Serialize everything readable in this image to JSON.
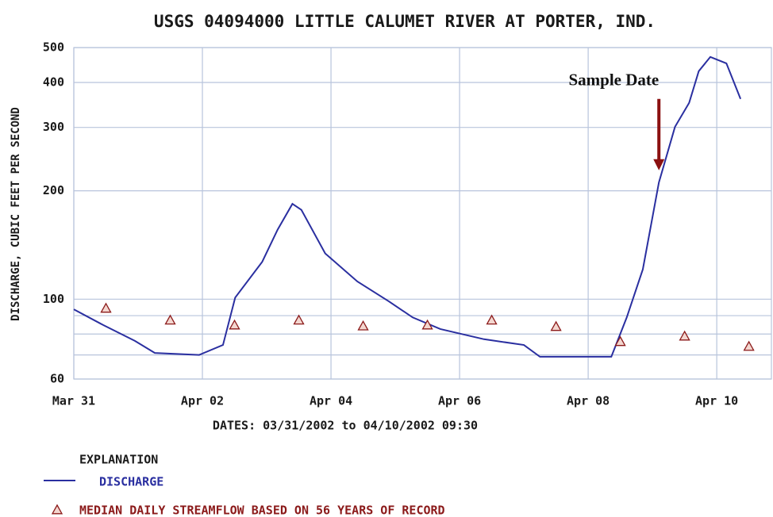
{
  "chart_data": {
    "type": "line",
    "title": "USGS 04094000 LITTLE CALUMET RIVER AT PORTER, IND.",
    "xlabel": "DATES: 03/31/2002 to 04/10/2002 09:30",
    "ylabel": "DISCHARGE, CUBIC FEET PER SECOND",
    "legend_title": "EXPLANATION",
    "annotation": {
      "text": "Sample Date",
      "x": 9.1,
      "y": 228,
      "color": "#8b1010"
    },
    "xlim": [
      0,
      10.85
    ],
    "xticks": [
      {
        "value": 0,
        "label": "Mar 31"
      },
      {
        "value": 2,
        "label": "Apr 02"
      },
      {
        "value": 4,
        "label": "Apr 04"
      },
      {
        "value": 6,
        "label": "Apr 06"
      },
      {
        "value": 8,
        "label": "Apr 08"
      },
      {
        "value": 10,
        "label": "Apr 10"
      }
    ],
    "ylim": [
      60,
      500
    ],
    "yticks": [
      60,
      100,
      200,
      300,
      400,
      500
    ],
    "minor_yticks": [
      70,
      80,
      90
    ],
    "log_y": true,
    "grid": true,
    "grid_color": "#b8c4dc",
    "series": [
      {
        "name": "DISCHARGE",
        "color": "#2a2fa0",
        "type": "line",
        "x": [
          0,
          0.46,
          0.95,
          1.26,
          1.95,
          2.32,
          2.51,
          2.93,
          3.17,
          3.4,
          3.54,
          3.91,
          4.41,
          4.9,
          5.27,
          5.7,
          6.38,
          7.0,
          7.25,
          8.36,
          8.6,
          8.85,
          9.1,
          9.35,
          9.57,
          9.72,
          9.9,
          10.15,
          10.37
        ],
        "values": [
          93.7,
          84.7,
          76.6,
          70.9,
          70,
          74.6,
          101,
          127,
          156,
          184,
          177,
          134,
          112,
          98.6,
          89,
          82.6,
          77.4,
          74.6,
          69.2,
          69.2,
          89,
          121,
          211,
          301,
          351,
          430,
          471,
          452,
          360
        ]
      },
      {
        "name": "MEDIAN DAILY STREAMFLOW BASED ON 56 YEARS OF RECORD",
        "color": "#8b1a1a",
        "type": "marker",
        "x": [
          0.5,
          1.5,
          2.5,
          3.5,
          4.5,
          5.5,
          6.5,
          7.5,
          8.5,
          9.5,
          10.5
        ],
        "values": [
          94.3,
          87.4,
          84.7,
          87.4,
          84.2,
          84.7,
          87.4,
          83.9,
          76.2,
          78.9,
          73.9
        ]
      }
    ]
  }
}
